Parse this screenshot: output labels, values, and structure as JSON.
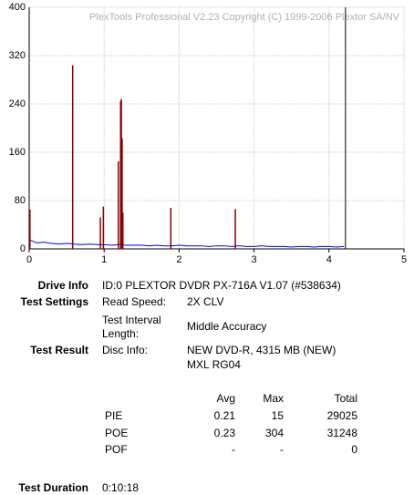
{
  "chart_data": {
    "type": "line",
    "watermark": "PlexTools Professional V2.23 Copyright (C) 1999-2006 Plextor SA/NV",
    "xlim": [
      0,
      5
    ],
    "xticks": [
      0,
      1,
      2,
      3,
      4,
      5
    ],
    "ylim": [
      0,
      400
    ],
    "yticks": [
      0,
      80,
      160,
      240,
      320,
      400
    ],
    "grid": true,
    "end_marker_x": 4.22,
    "series": [
      {
        "name": "PIE",
        "type": "line",
        "color": "#0000ff",
        "x": [
          0,
          0.1,
          0.2,
          0.3,
          0.4,
          0.5,
          0.6,
          0.7,
          0.8,
          0.9,
          1,
          1.1,
          1.2,
          1.3,
          1.4,
          1.5,
          1.6,
          1.7,
          1.8,
          1.9,
          2,
          2.1,
          2.2,
          2.3,
          2.4,
          2.5,
          2.6,
          2.7,
          2.8,
          2.9,
          3,
          3.1,
          3.2,
          3.3,
          3.4,
          3.5,
          3.6,
          3.7,
          3.8,
          3.9,
          4,
          4.1,
          4.2
        ],
        "values": [
          15,
          10,
          11,
          9,
          8,
          9,
          8,
          7,
          8,
          7,
          7,
          6,
          7,
          6,
          6,
          6,
          5,
          6,
          5,
          5,
          6,
          5,
          5,
          5,
          4,
          5,
          5,
          4,
          5,
          4,
          4,
          5,
          4,
          4,
          4,
          3,
          4,
          4,
          3,
          4,
          4,
          3,
          4
        ]
      },
      {
        "name": "POE",
        "type": "bar",
        "color": "#8b0000",
        "x": [
          0.01,
          0.58,
          0.95,
          0.99,
          1.19,
          1.22,
          1.23,
          1.24,
          1.25,
          1.89,
          2.75
        ],
        "values": [
          65,
          304,
          52,
          70,
          145,
          245,
          248,
          183,
          60,
          68,
          66
        ]
      }
    ]
  },
  "info": {
    "drive_info": {
      "label": "Drive Info",
      "value": "ID:0 PLEXTOR DVDR PX-716A V1.07 (#538634)"
    },
    "test_settings": {
      "label": "Test Settings",
      "rows": [
        [
          "Read Speed:",
          "2X CLV"
        ],
        [
          "Test Interval Length:",
          "Middle Accuracy"
        ]
      ]
    },
    "test_result": {
      "label": "Test Result",
      "disc_label": "Disc Info:",
      "disc_lines": [
        "NEW DVD-R, 4315 MB (NEW)",
        "MXL RG04"
      ]
    },
    "stats": {
      "header": [
        "Avg",
        "Max",
        "Total"
      ],
      "rows": [
        [
          "PIE",
          0.21,
          15,
          29025
        ],
        [
          "POE",
          0.23,
          304,
          31248
        ],
        [
          "POF",
          "-",
          "-",
          0
        ]
      ]
    },
    "test_duration": {
      "label": "Test Duration",
      "value": "0:10:18"
    }
  }
}
